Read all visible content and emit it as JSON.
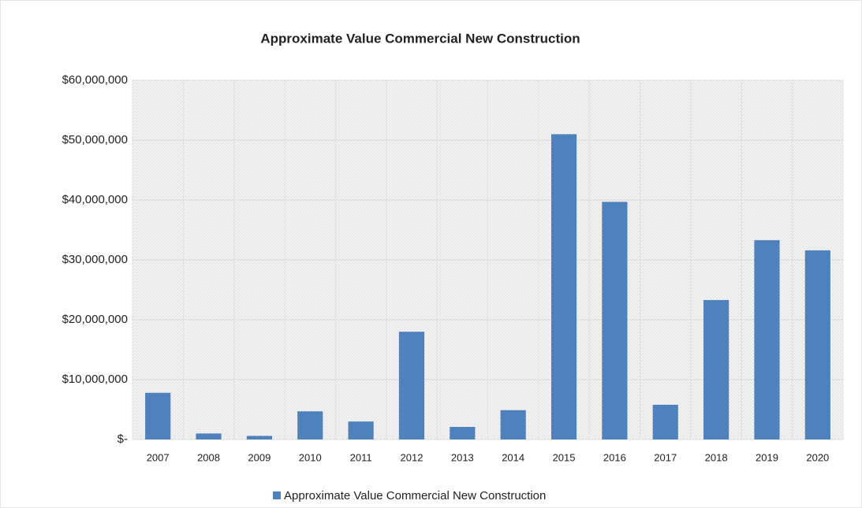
{
  "chart_data": {
    "type": "bar",
    "title": "Approximate Value Commercial  New Construction",
    "categories": [
      "2007",
      "2008",
      "2009",
      "2010",
      "2011",
      "2012",
      "2013",
      "2014",
      "2015",
      "2016",
      "2017",
      "2018",
      "2019",
      "2020"
    ],
    "series": [
      {
        "name": "Approximate Value Commercial  New Construction",
        "color": "#4f81bd",
        "values": [
          7800000,
          1000000,
          600000,
          4700000,
          3000000,
          18000000,
          2100000,
          4900000,
          51000000,
          39700000,
          5800000,
          23300000,
          33300000,
          31600000
        ]
      }
    ],
    "ylim": [
      0,
      60000000
    ],
    "yticks": [
      {
        "value": 0,
        "label": "$-"
      },
      {
        "value": 10000000,
        "label": "$10,000,000"
      },
      {
        "value": 20000000,
        "label": "$20,000,000"
      },
      {
        "value": 30000000,
        "label": "$30,000,000"
      },
      {
        "value": 40000000,
        "label": "$40,000,000"
      },
      {
        "value": 50000000,
        "label": "$50,000,000"
      },
      {
        "value": 60000000,
        "label": "$60,000,000"
      }
    ],
    "grid": true,
    "legend": "bottom"
  }
}
